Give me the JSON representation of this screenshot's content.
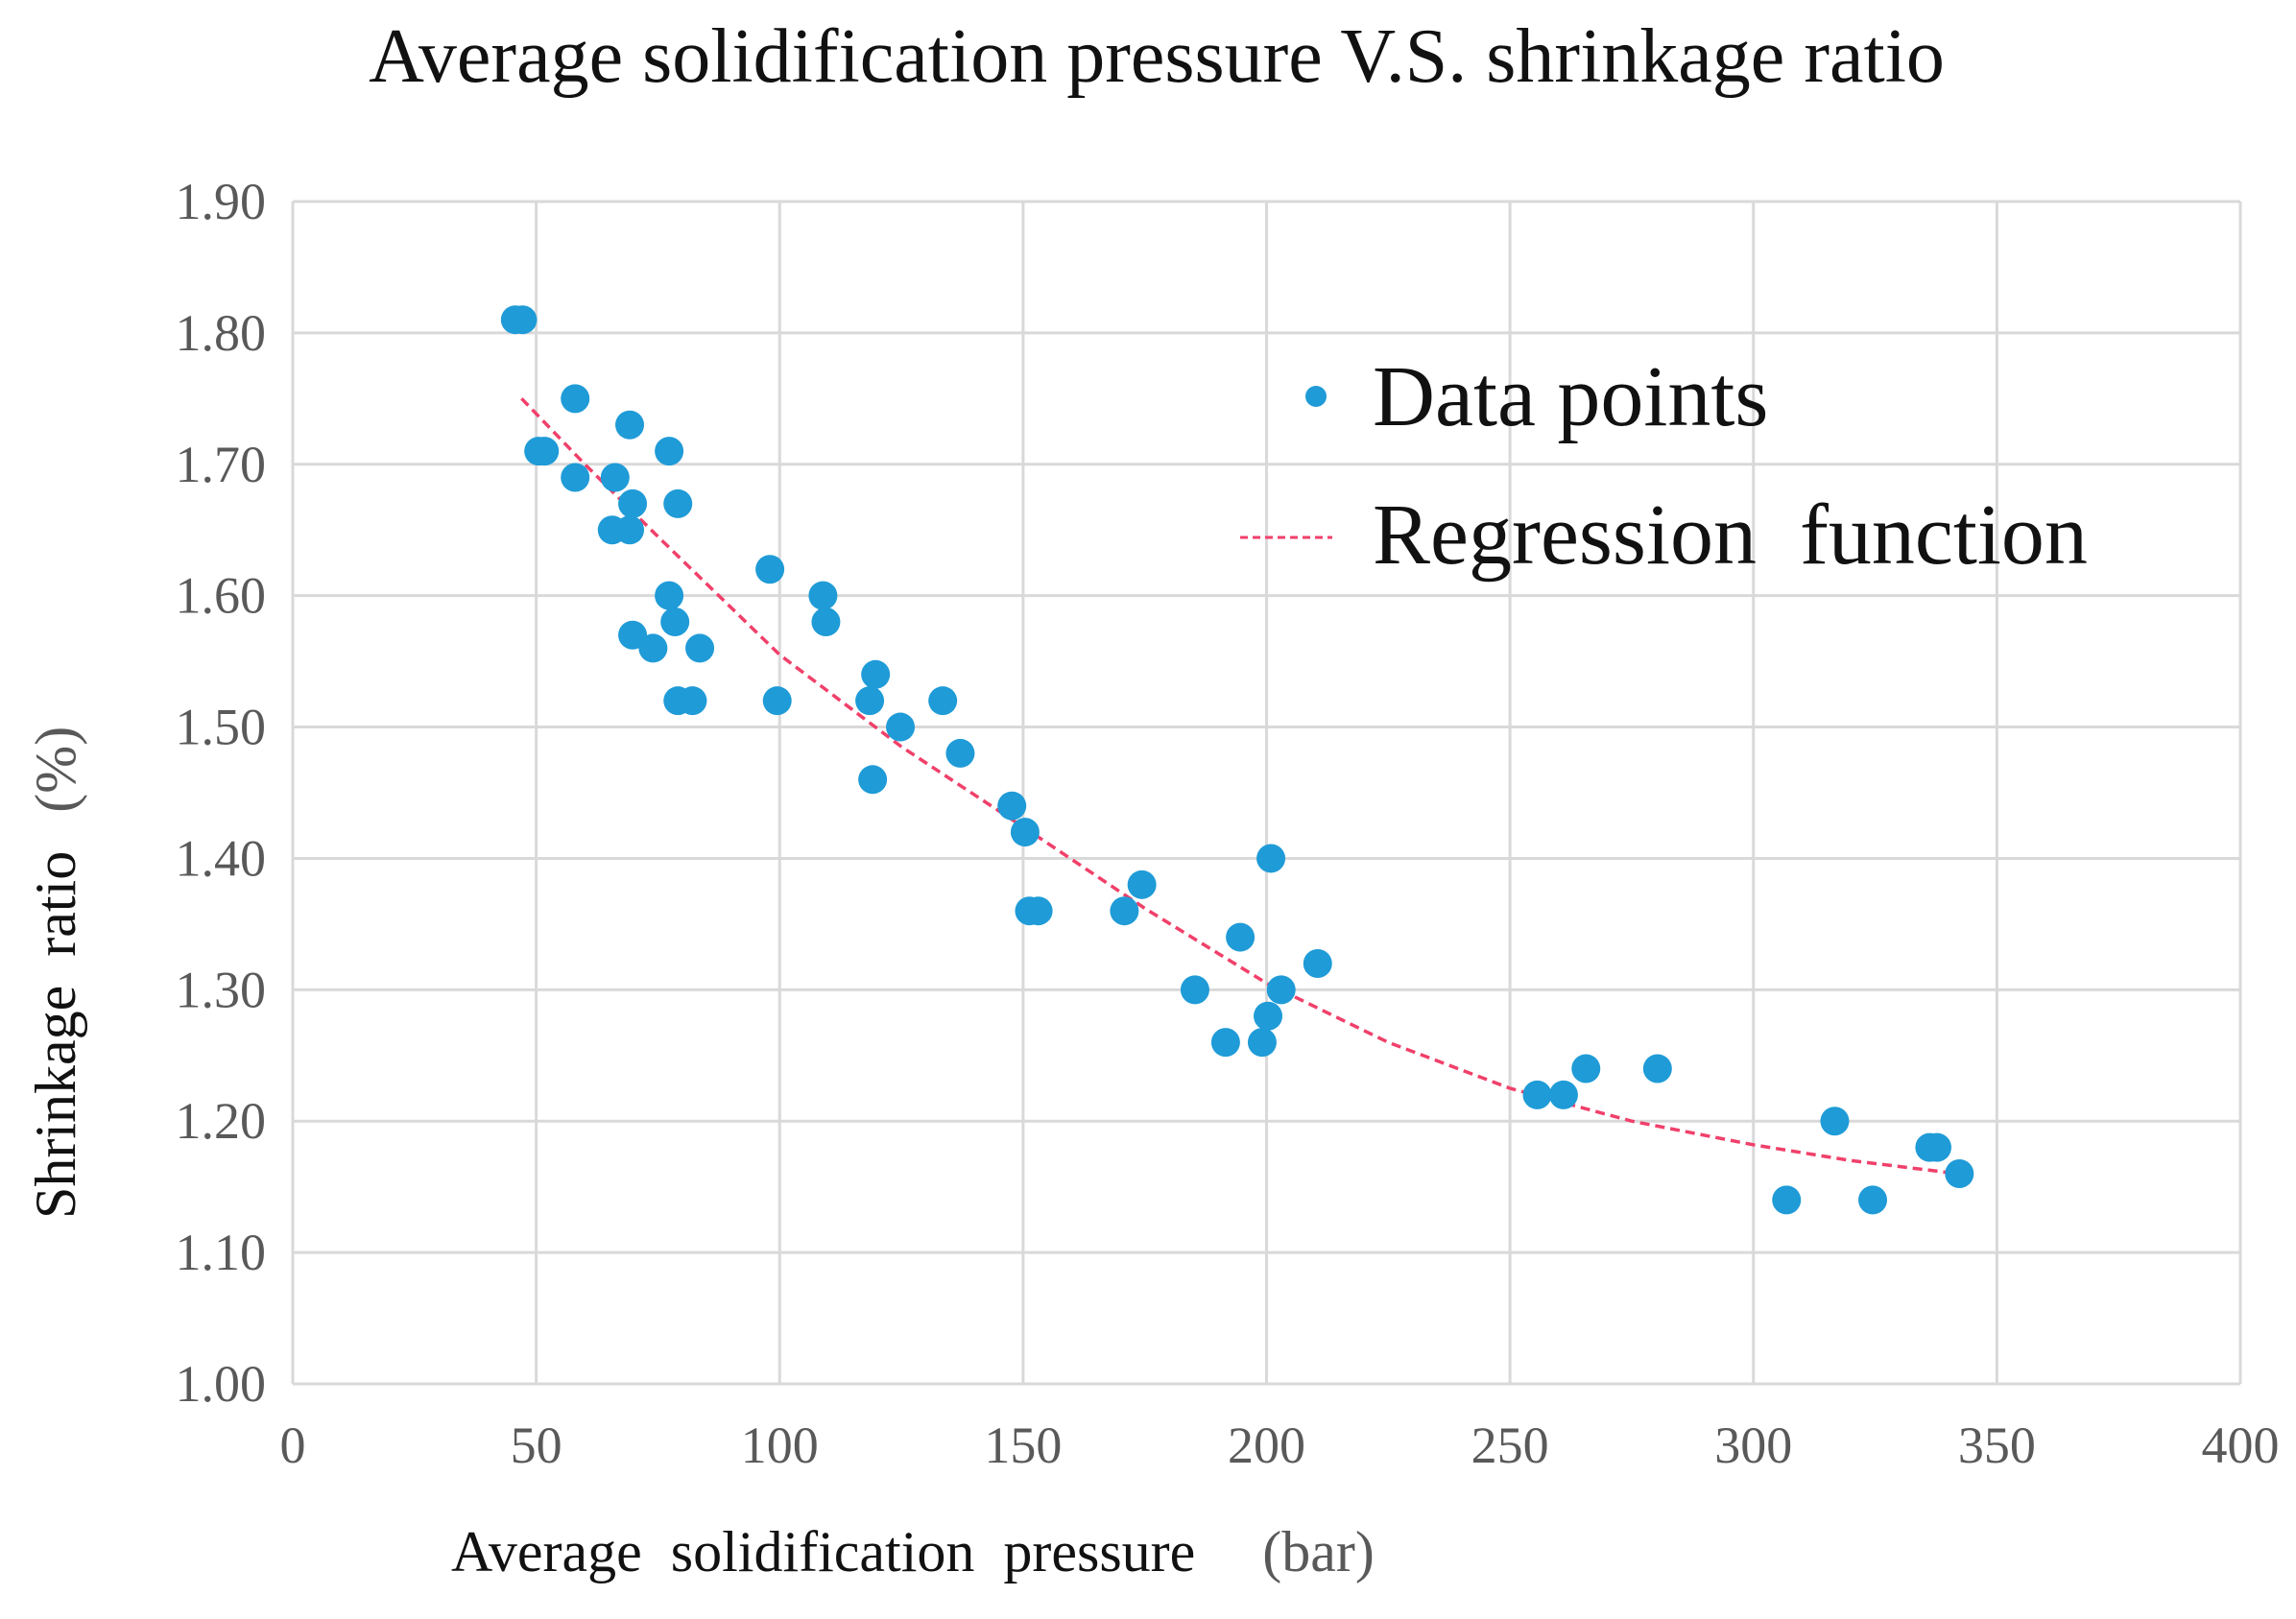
{
  "chart_data": {
    "type": "scatter",
    "title": "Average solidification pressure V.S. shrinkage ratio",
    "xlabel": "Average  solidification  pressure",
    "xlabel_unit": "(bar)",
    "ylabel": "Shrinkage  ratio",
    "ylabel_unit": "(%)",
    "xlim": [
      0,
      400
    ],
    "ylim": [
      1.0,
      1.9
    ],
    "xticks": [
      "0",
      "50",
      "100",
      "150",
      "200",
      "250",
      "300",
      "350",
      "400"
    ],
    "yticks": [
      "1.00",
      "1.10",
      "1.20",
      "1.30",
      "1.40",
      "1.50",
      "1.60",
      "1.70",
      "1.80",
      "1.90"
    ],
    "grid": true,
    "legend_position": "top-right",
    "colors": {
      "points": "#1f9bd7",
      "regression": "#f0406a",
      "grid": "#d9d9d9"
    },
    "series": [
      {
        "name": "Data points",
        "kind": "scatter",
        "points": [
          [
            45.7,
            1.81
          ],
          [
            47.2,
            1.81
          ],
          [
            58,
            1.75
          ],
          [
            50.5,
            1.71
          ],
          [
            51.7,
            1.71
          ],
          [
            58,
            1.69
          ],
          [
            66.2,
            1.69
          ],
          [
            69.2,
            1.73
          ],
          [
            77.3,
            1.71
          ],
          [
            69.8,
            1.67
          ],
          [
            79.1,
            1.67
          ],
          [
            65.6,
            1.65
          ],
          [
            69.2,
            1.65
          ],
          [
            77.3,
            1.6
          ],
          [
            78.5,
            1.58
          ],
          [
            69.8,
            1.57
          ],
          [
            74,
            1.56
          ],
          [
            83.6,
            1.56
          ],
          [
            79.1,
            1.52
          ],
          [
            82.1,
            1.52
          ],
          [
            98,
            1.62
          ],
          [
            99.5,
            1.52
          ],
          [
            108.9,
            1.6
          ],
          [
            109.5,
            1.58
          ],
          [
            119.7,
            1.54
          ],
          [
            118.5,
            1.52
          ],
          [
            119.1,
            1.46
          ],
          [
            124.8,
            1.5
          ],
          [
            133.5,
            1.52
          ],
          [
            137.1,
            1.48
          ],
          [
            147.7,
            1.44
          ],
          [
            150.4,
            1.42
          ],
          [
            151.3,
            1.36
          ],
          [
            153.1,
            1.36
          ],
          [
            170.8,
            1.36
          ],
          [
            174.4,
            1.38
          ],
          [
            185.3,
            1.3
          ],
          [
            191.6,
            1.26
          ],
          [
            194.6,
            1.34
          ],
          [
            199.1,
            1.26
          ],
          [
            200.3,
            1.28
          ],
          [
            200.9,
            1.4
          ],
          [
            203,
            1.3
          ],
          [
            210.5,
            1.32
          ],
          [
            255.6,
            1.22
          ],
          [
            261,
            1.22
          ],
          [
            265.6,
            1.24
          ],
          [
            280.3,
            1.24
          ],
          [
            306.8,
            1.14
          ],
          [
            316.7,
            1.2
          ],
          [
            324.5,
            1.14
          ],
          [
            336.2,
            1.18
          ],
          [
            337.7,
            1.18
          ],
          [
            342.3,
            1.16
          ]
        ]
      },
      {
        "name": "Regression  function",
        "kind": "line-dashed",
        "points": [
          [
            47,
            1.75
          ],
          [
            60,
            1.7
          ],
          [
            75,
            1.645
          ],
          [
            100,
            1.555
          ],
          [
            125,
            1.485
          ],
          [
            150,
            1.424
          ],
          [
            175,
            1.362
          ],
          [
            200,
            1.305
          ],
          [
            225,
            1.26
          ],
          [
            250,
            1.225
          ],
          [
            275,
            1.2
          ],
          [
            300,
            1.182
          ],
          [
            320,
            1.17
          ],
          [
            342,
            1.16
          ]
        ]
      }
    ]
  }
}
